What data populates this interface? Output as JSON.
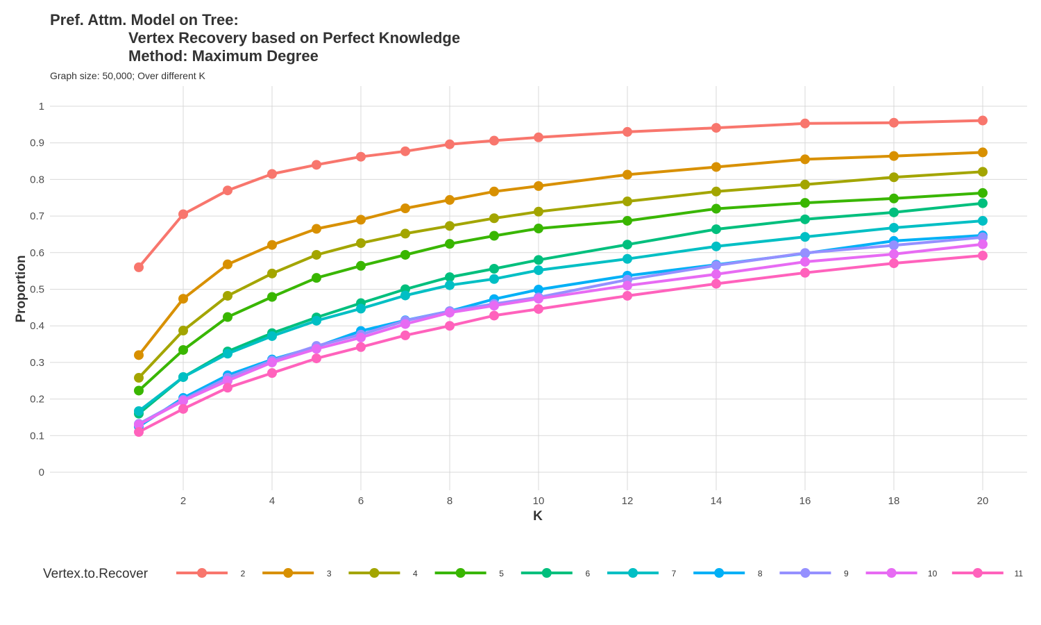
{
  "chart_data": {
    "type": "line",
    "title_lines": [
      "Pref. Attm. Model on Tree:",
      "Vertex Recovery based on Perfect Knowledge",
      "Method: Maximum Degree"
    ],
    "subtitle": "Graph size: 50,000; Over different K",
    "xlabel": "K",
    "ylabel": "Proportion",
    "xlim": [
      1,
      20
    ],
    "ylim": [
      0,
      1
    ],
    "x_ticks": [
      2,
      4,
      6,
      8,
      10,
      12,
      14,
      16,
      18,
      20
    ],
    "y_ticks": [
      0,
      0.1,
      0.2,
      0.3,
      0.4,
      0.5,
      0.6,
      0.7,
      0.8,
      0.9,
      1
    ],
    "y_tick_labels": [
      "0",
      "0.1",
      "0.2",
      "0.3",
      "0.4",
      "0.5",
      "0.6",
      "0.7",
      "0.8",
      "0.9",
      "1"
    ],
    "grid": true,
    "legend_title": "Vertex.to.Recover",
    "legend_position": "bottom",
    "x": [
      1,
      2,
      3,
      4,
      5,
      6,
      7,
      8,
      9,
      10,
      12,
      14,
      16,
      18,
      20
    ],
    "series": [
      {
        "name": "2",
        "color": "#F8766D",
        "values": [
          0.56,
          0.705,
          0.77,
          0.815,
          0.84,
          0.862,
          0.877,
          0.896,
          0.906,
          0.915,
          0.93,
          0.941,
          0.953,
          0.955,
          0.961
        ]
      },
      {
        "name": "3",
        "color": "#D89000",
        "values": [
          0.32,
          0.474,
          0.568,
          0.621,
          0.665,
          0.69,
          0.721,
          0.744,
          0.767,
          0.782,
          0.813,
          0.834,
          0.855,
          0.864,
          0.874
        ]
      },
      {
        "name": "4",
        "color": "#A3A500",
        "values": [
          0.258,
          0.387,
          0.482,
          0.543,
          0.594,
          0.626,
          0.652,
          0.673,
          0.694,
          0.712,
          0.74,
          0.767,
          0.786,
          0.806,
          0.821
        ]
      },
      {
        "name": "5",
        "color": "#39B600",
        "values": [
          0.223,
          0.334,
          0.424,
          0.479,
          0.531,
          0.564,
          0.594,
          0.624,
          0.646,
          0.666,
          0.687,
          0.72,
          0.736,
          0.748,
          0.763
        ]
      },
      {
        "name": "6",
        "color": "#00BF7D",
        "values": [
          0.16,
          0.26,
          0.33,
          0.38,
          0.423,
          0.462,
          0.5,
          0.533,
          0.556,
          0.58,
          0.622,
          0.664,
          0.691,
          0.71,
          0.735
        ]
      },
      {
        "name": "7",
        "color": "#00BFC4",
        "values": [
          0.167,
          0.26,
          0.324,
          0.372,
          0.414,
          0.447,
          0.483,
          0.511,
          0.528,
          0.552,
          0.583,
          0.617,
          0.643,
          0.668,
          0.687
        ]
      },
      {
        "name": "8",
        "color": "#00B0F6",
        "values": [
          0.125,
          0.203,
          0.265,
          0.308,
          0.343,
          0.386,
          0.415,
          0.44,
          0.473,
          0.499,
          0.537,
          0.567,
          0.598,
          0.632,
          0.647
        ]
      },
      {
        "name": "9",
        "color": "#9590FF",
        "values": [
          0.132,
          0.198,
          0.258,
          0.305,
          0.345,
          0.376,
          0.414,
          0.44,
          0.46,
          0.478,
          0.526,
          0.565,
          0.599,
          0.62,
          0.642
        ]
      },
      {
        "name": "10",
        "color": "#E76BF3",
        "values": [
          0.13,
          0.195,
          0.25,
          0.3,
          0.337,
          0.368,
          0.405,
          0.436,
          0.455,
          0.474,
          0.51,
          0.541,
          0.575,
          0.596,
          0.623
        ]
      },
      {
        "name": "11",
        "color": "#FF62BC",
        "values": [
          0.11,
          0.173,
          0.231,
          0.271,
          0.311,
          0.342,
          0.374,
          0.4,
          0.428,
          0.446,
          0.482,
          0.515,
          0.545,
          0.571,
          0.592
        ]
      }
    ]
  }
}
